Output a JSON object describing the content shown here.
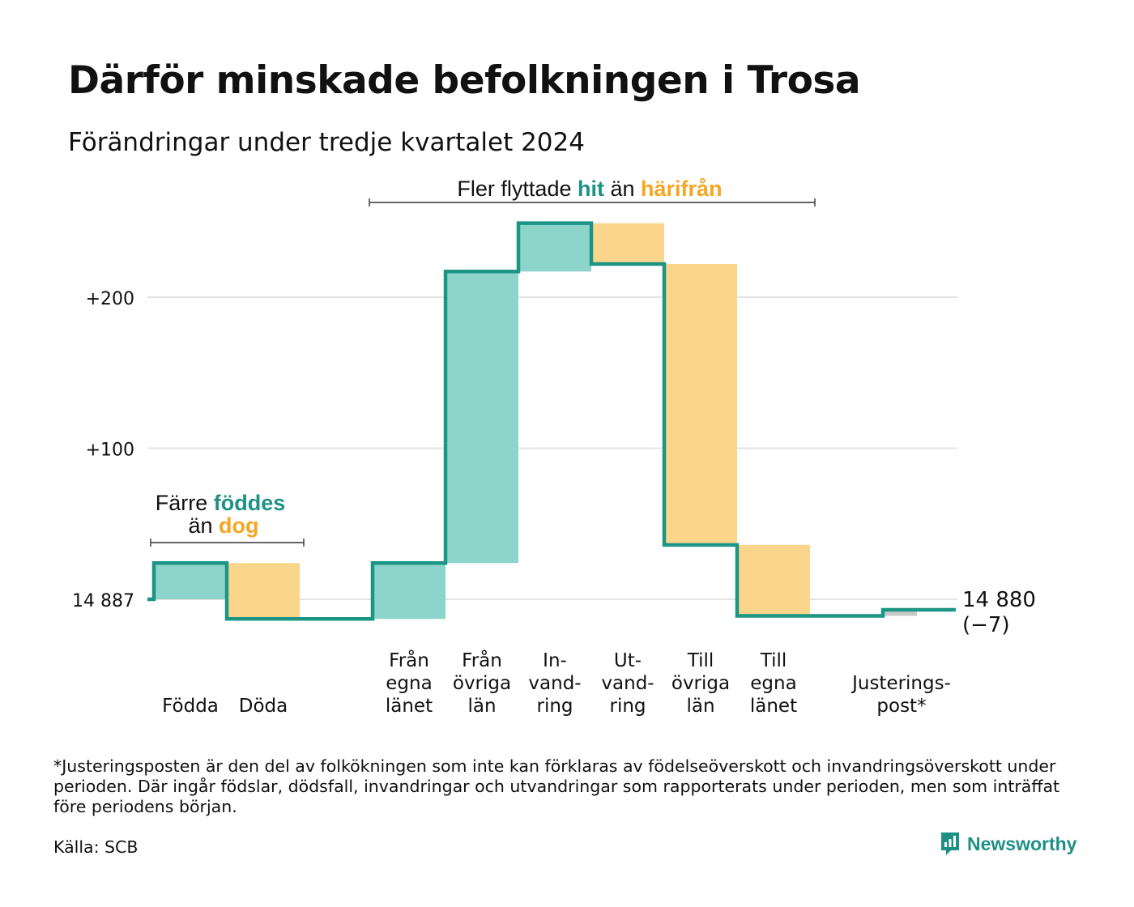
{
  "title": "Därför minskade befolkningen i Trosa",
  "subtitle": "Förändringar under tredje kvartalet 2024",
  "footnote": "*Justeringsposten är den del av folkökningen som inte kan förklaras av födelseöverskott och invandringsöverskott under perioden. Där ingår födslar, dödsfall, invandringar och utvandringar som rapporterats under perioden, men som inträffat före periodens början.",
  "source": "Källa: SCB",
  "brand": {
    "name": "Newsworthy",
    "logo_icon": "newsworthy-chart-bubble-icon"
  },
  "colors": {
    "increase_fill": "#8dd5cb",
    "decrease_fill": "#fad58b",
    "adjustment_fill": "#c8c8c8",
    "line": "#1c9585",
    "teal_text": "#1e9186",
    "orange_text": "#f5a623",
    "grid": "#e3e3e3"
  },
  "annotations": {
    "births_deaths": {
      "line1_prefix": "Färre ",
      "line1_highlight": "föddes",
      "line2_prefix": "än ",
      "line2_highlight": "dog"
    },
    "migration": {
      "prefix": "Fler flyttade ",
      "highlight1": "hit",
      "middle": " än ",
      "highlight2": "härifrån"
    }
  },
  "end_label": {
    "value": "14 880",
    "change": "(−7)"
  },
  "chart_data": {
    "type": "waterfall",
    "start_value": 14887,
    "end_value": 14880,
    "net_change": -7,
    "y_ticks": [
      {
        "value": 0,
        "label": "14 887"
      },
      {
        "value": 100,
        "label": "+100"
      },
      {
        "value": 200,
        "label": "+200"
      }
    ],
    "ylim": [
      -12,
      255
    ],
    "grid": true,
    "steps": [
      {
        "label_lines": [
          "Födda"
        ],
        "change": 24
      },
      {
        "label_lines": [
          "Döda"
        ],
        "change": -37
      },
      {
        "label_lines": [],
        "change": 0
      },
      {
        "label_lines": [
          "Från",
          "egna",
          "länet"
        ],
        "change": 37
      },
      {
        "label_lines": [
          "Från",
          "övriga",
          "län"
        ],
        "change": 193
      },
      {
        "label_lines": [
          "In-",
          "vand-",
          "ring"
        ],
        "change": 32
      },
      {
        "label_lines": [
          "Ut-",
          "vand-",
          "ring"
        ],
        "change": -27
      },
      {
        "label_lines": [
          "Till",
          "övriga",
          "län"
        ],
        "change": -186
      },
      {
        "label_lines": [
          "Till",
          "egna",
          "länet"
        ],
        "change": -47
      },
      {
        "label_lines": [],
        "change": 0
      },
      {
        "label_lines": [
          "Justerings-",
          "post*"
        ],
        "change": 4
      }
    ]
  }
}
